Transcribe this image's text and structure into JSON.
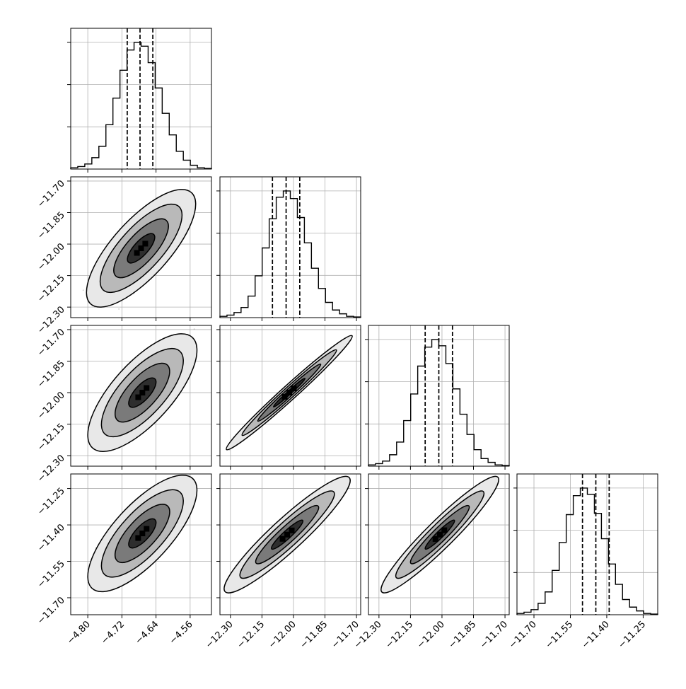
{
  "chart_data": {
    "type": "scatter",
    "title": "",
    "parameters": [
      {
        "range": [
          -4.84,
          -4.51
        ],
        "ticks": [
          -4.8,
          -4.72,
          -4.64,
          -4.56
        ],
        "tick_labels": [
          "−4.80",
          "−4.72",
          "−4.64",
          "−4.56"
        ],
        "quantiles": [
          -4.7075,
          -4.6775,
          -4.6475
        ],
        "hist": [
          1,
          2,
          4,
          9,
          18,
          35,
          56,
          78,
          94,
          100,
          97,
          84,
          64,
          44,
          27,
          14,
          7,
          3,
          1,
          0.5
        ]
      },
      {
        "range": [
          -12.35,
          -11.68
        ],
        "ticks": [
          -12.3,
          -12.15,
          -12.0,
          -11.85,
          -11.7
        ],
        "tick_labels": [
          "−12.30",
          "−12.15",
          "−12.00",
          "−11.85",
          "−11.70"
        ],
        "quantiles": [
          -12.1,
          -12.035,
          -11.97
        ],
        "hist": [
          1,
          2,
          4,
          8,
          17,
          33,
          55,
          78,
          95,
          100,
          94,
          79,
          59,
          39,
          23,
          12,
          6,
          3,
          1,
          0.5
        ]
      },
      {
        "range": [
          -12.35,
          -11.68
        ],
        "ticks": [
          -12.3,
          -12.15,
          -12.0,
          -11.85,
          -11.7
        ],
        "tick_labels": [
          "−12.30",
          "−12.15",
          "−12.00",
          "−11.85",
          "−11.70"
        ],
        "quantiles": [
          -12.08,
          -12.015,
          -11.95
        ],
        "hist": [
          1,
          2,
          4,
          9,
          19,
          36,
          57,
          79,
          94,
          100,
          95,
          81,
          61,
          41,
          25,
          13,
          6,
          3,
          1,
          0.5
        ]
      },
      {
        "range": [
          -11.77,
          -11.19
        ],
        "ticks": [
          -11.7,
          -11.55,
          -11.4,
          -11.25
        ],
        "tick_labels": [
          "−11.70",
          "−11.55",
          "−11.40",
          "−11.25"
        ],
        "quantiles": [
          -11.5,
          -11.445,
          -11.39
        ],
        "hist": [
          1,
          2,
          4,
          9,
          18,
          35,
          57,
          79,
          94,
          100,
          95,
          80,
          60,
          40,
          24,
          12,
          6,
          3,
          1,
          0.5
        ]
      }
    ],
    "pairs": [
      {
        "row": 1,
        "col": 0,
        "center": [
          -4.675,
          -12.02
        ],
        "sigma": [
          0.032,
          0.07
        ],
        "rho": 0.75
      },
      {
        "row": 2,
        "col": 0,
        "center": [
          -4.672,
          -12.0
        ],
        "sigma": [
          0.032,
          0.07
        ],
        "rho": 0.72
      },
      {
        "row": 2,
        "col": 1,
        "center": [
          -12.02,
          -12.0
        ],
        "sigma": [
          0.075,
          0.068
        ],
        "rho": 0.985
      },
      {
        "row": 3,
        "col": 0,
        "center": [
          -4.672,
          -11.435
        ],
        "sigma": [
          0.032,
          0.06
        ],
        "rho": 0.74
      },
      {
        "row": 3,
        "col": 1,
        "center": [
          -12.03,
          -11.44
        ],
        "sigma": [
          0.075,
          0.06
        ],
        "rho": 0.93
      },
      {
        "row": 3,
        "col": 2,
        "center": [
          -12.01,
          -11.44
        ],
        "sigma": [
          0.07,
          0.06
        ],
        "rho": 0.945
      }
    ],
    "grid": true,
    "contour_levels_sigma": [
      0.5,
      1.0,
      1.5,
      2.0
    ],
    "xlabels": [
      "",
      "",
      "",
      ""
    ],
    "ylabels": [
      "",
      "",
      "",
      ""
    ]
  },
  "colors": {
    "line": "#000000",
    "scatter": "#8c8c8c",
    "grid": "#b0b0b0",
    "frame": "#000000",
    "fill_levels": [
      "#e8e8e8",
      "#b9b9b9",
      "#7a7a7a",
      "#2e2e2e"
    ]
  }
}
